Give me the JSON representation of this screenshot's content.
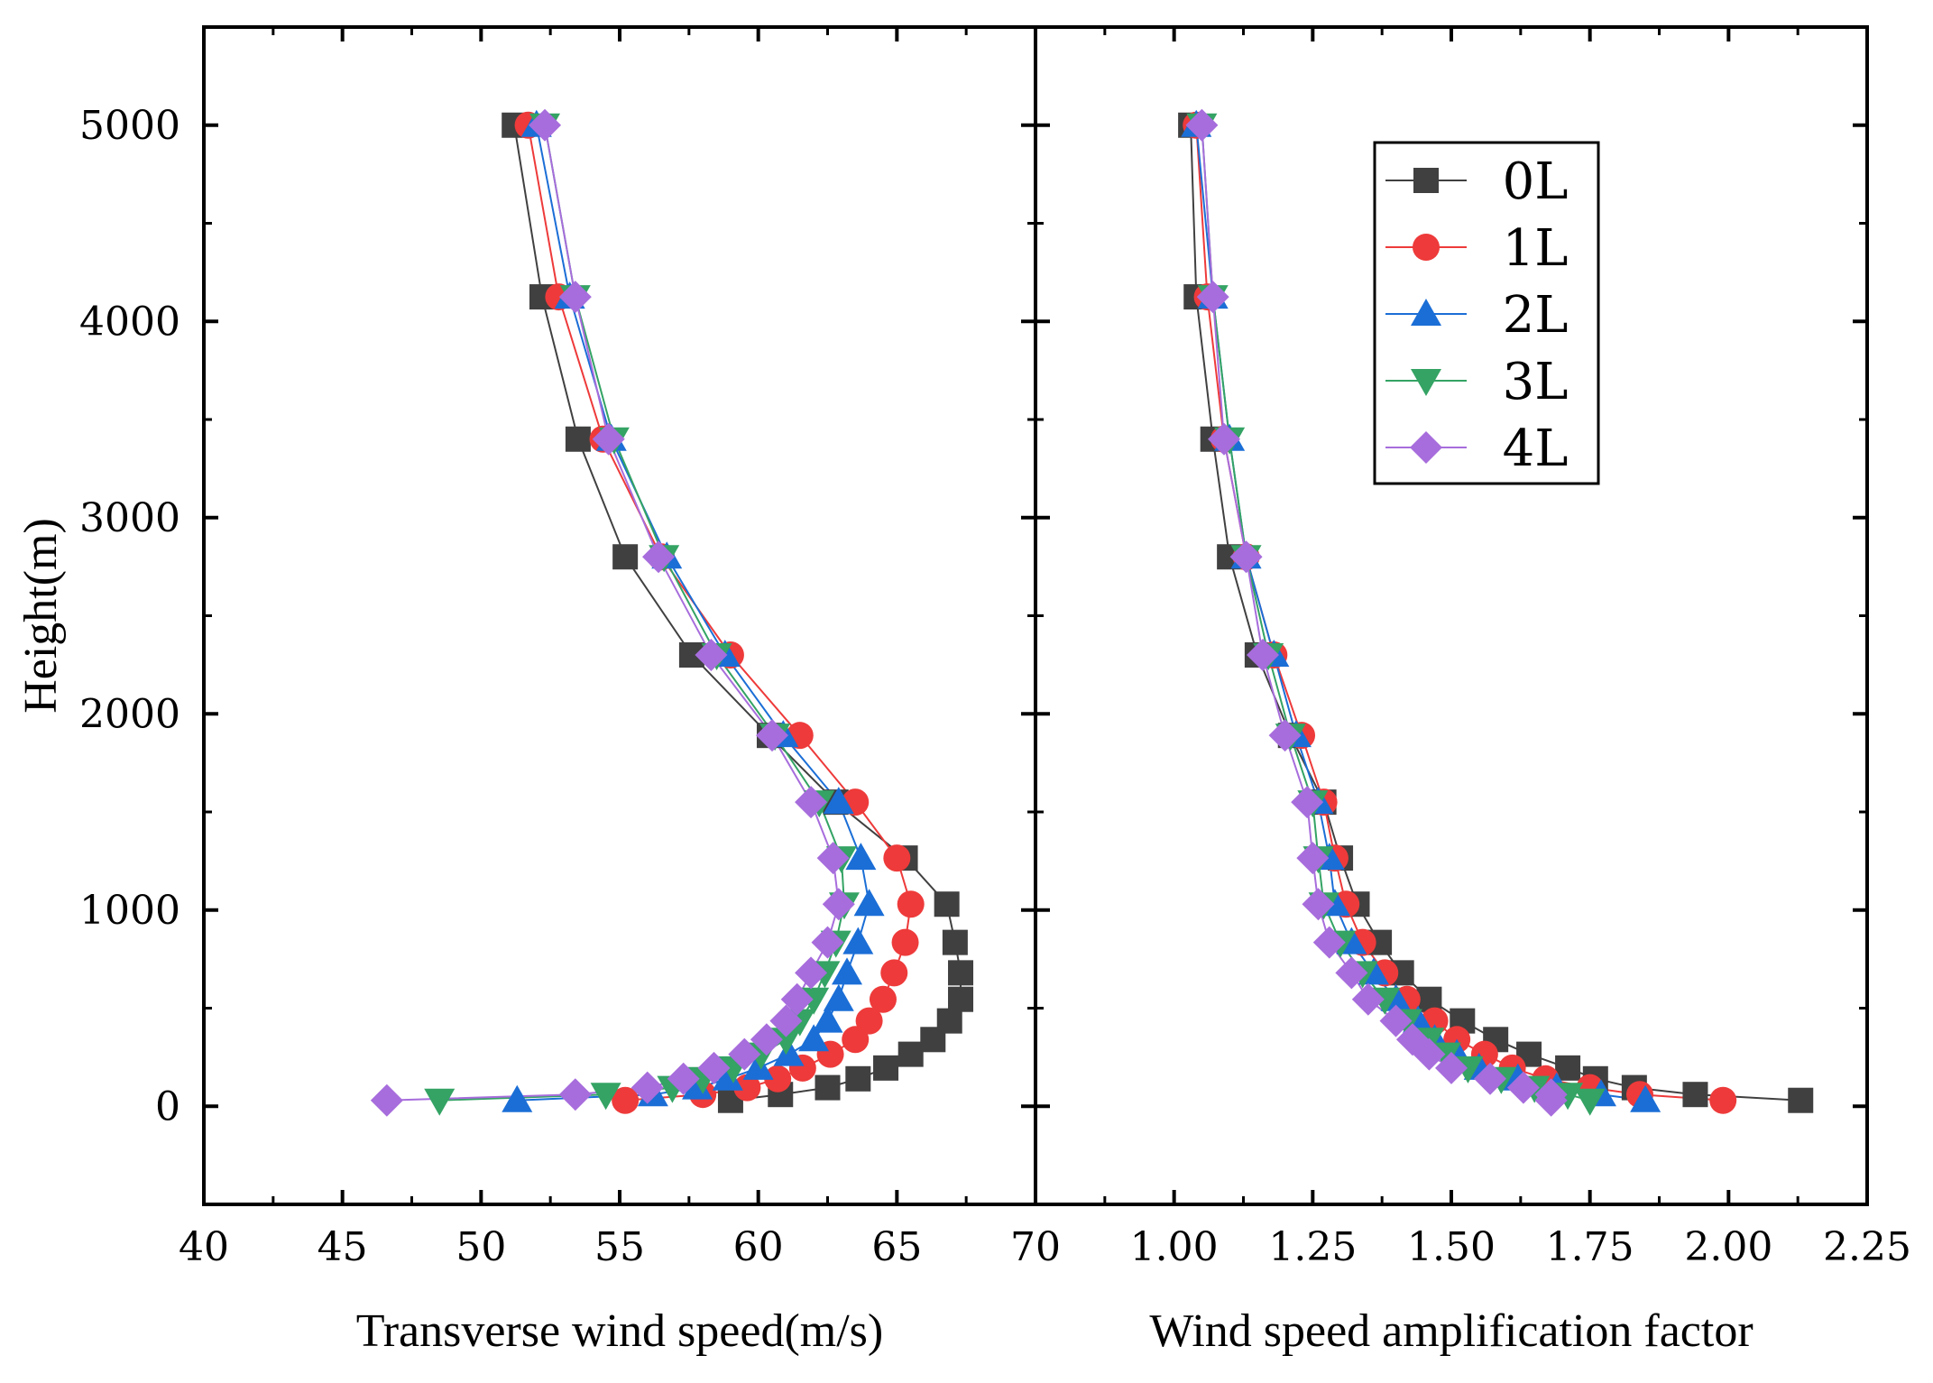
{
  "chart_data": [
    {
      "type": "line",
      "xlabel": "Transverse wind speed(m/s)",
      "ylabel": "Height(m)",
      "xlim": [
        40,
        70
      ],
      "ylim": [
        -500,
        5500
      ],
      "x_ticks": [
        40,
        45,
        50,
        55,
        60,
        65,
        70
      ],
      "x_tick_labels": [
        "40",
        "45",
        "50",
        "55",
        "60",
        "65",
        "70"
      ],
      "y_ticks": [
        0,
        1000,
        2000,
        3000,
        4000,
        5000
      ],
      "y_tick_labels": [
        "0",
        "1000",
        "2000",
        "3000",
        "4000",
        "5000"
      ],
      "y": [
        5000,
        4125,
        3400,
        2800,
        2300,
        1890,
        1550,
        1265,
        1030,
        835,
        680,
        545,
        435,
        340,
        265,
        195,
        140,
        95,
        60,
        30
      ],
      "series": [
        {
          "name": "0L",
          "values": [
            51.2,
            52.2,
            53.5,
            55.2,
            57.6,
            60.4,
            62.8,
            65.3,
            66.8,
            67.1,
            67.3,
            67.3,
            66.9,
            66.3,
            65.5,
            64.6,
            63.6,
            62.5,
            60.8,
            59.0
          ]
        },
        {
          "name": "1L",
          "values": [
            51.7,
            52.8,
            54.4,
            56.5,
            59.0,
            61.5,
            63.5,
            65.0,
            65.5,
            65.3,
            64.9,
            64.5,
            64.0,
            63.5,
            62.6,
            61.6,
            60.7,
            59.6,
            58.0,
            55.2
          ]
        },
        {
          "name": "2L",
          "values": [
            52.0,
            53.2,
            54.7,
            56.7,
            58.8,
            60.9,
            62.9,
            63.7,
            64.0,
            63.6,
            63.2,
            62.9,
            62.5,
            62.0,
            61.1,
            60.0,
            58.9,
            57.8,
            56.2,
            51.3
          ]
        },
        {
          "name": "3L",
          "values": [
            52.3,
            53.4,
            54.8,
            56.6,
            58.5,
            60.6,
            62.2,
            63.0,
            63.1,
            62.8,
            62.4,
            62.0,
            61.5,
            61.0,
            60.1,
            59.1,
            58.0,
            56.9,
            54.5,
            48.5
          ]
        },
        {
          "name": "4L",
          "values": [
            52.3,
            53.4,
            54.6,
            56.4,
            58.3,
            60.5,
            61.9,
            62.7,
            62.9,
            62.5,
            61.9,
            61.4,
            61.0,
            60.3,
            59.5,
            58.4,
            57.3,
            56.0,
            53.4,
            46.6
          ]
        }
      ]
    },
    {
      "type": "line",
      "xlabel": "Wind speed amplification factor",
      "ylabel": "",
      "xlim": [
        0.75,
        2.25
      ],
      "ylim": [
        -500,
        5500
      ],
      "x_ticks": [
        1.0,
        1.25,
        1.5,
        1.75,
        2.0,
        2.25
      ],
      "x_tick_labels": [
        "1.00",
        "1.25",
        "1.50",
        "1.75",
        "2.00",
        "2.25"
      ],
      "y": [
        5000,
        4125,
        3400,
        2800,
        2300,
        1890,
        1550,
        1265,
        1030,
        835,
        680,
        545,
        435,
        340,
        265,
        195,
        140,
        95,
        60,
        30
      ],
      "series": [
        {
          "name": "0L",
          "values": [
            1.03,
            1.04,
            1.07,
            1.1,
            1.15,
            1.21,
            1.27,
            1.3,
            1.33,
            1.37,
            1.41,
            1.46,
            1.52,
            1.58,
            1.64,
            1.71,
            1.76,
            1.83,
            1.94,
            2.13
          ]
        },
        {
          "name": "1L",
          "values": [
            1.04,
            1.06,
            1.09,
            1.13,
            1.18,
            1.23,
            1.27,
            1.29,
            1.31,
            1.34,
            1.38,
            1.42,
            1.47,
            1.51,
            1.56,
            1.61,
            1.67,
            1.75,
            1.84,
            1.99
          ]
        },
        {
          "name": "2L",
          "values": [
            1.04,
            1.07,
            1.1,
            1.13,
            1.18,
            1.22,
            1.26,
            1.28,
            1.29,
            1.32,
            1.36,
            1.4,
            1.44,
            1.47,
            1.51,
            1.55,
            1.62,
            1.69,
            1.77,
            1.85
          ]
        },
        {
          "name": "3L",
          "values": [
            1.05,
            1.07,
            1.1,
            1.13,
            1.17,
            1.21,
            1.25,
            1.26,
            1.27,
            1.3,
            1.34,
            1.38,
            1.42,
            1.46,
            1.49,
            1.53,
            1.59,
            1.65,
            1.71,
            1.75
          ]
        },
        {
          "name": "4L",
          "values": [
            1.05,
            1.07,
            1.09,
            1.13,
            1.16,
            1.2,
            1.24,
            1.25,
            1.26,
            1.28,
            1.32,
            1.35,
            1.4,
            1.43,
            1.46,
            1.5,
            1.57,
            1.63,
            1.68,
            1.68
          ]
        }
      ]
    }
  ],
  "series_styles": [
    {
      "name": "0L",
      "color": "#404040",
      "marker": "square"
    },
    {
      "name": "1L",
      "color": "#ee3a3a",
      "marker": "circle"
    },
    {
      "name": "2L",
      "color": "#1b6ed6",
      "marker": "triangle-up"
    },
    {
      "name": "3L",
      "color": "#34a364",
      "marker": "triangle-down"
    },
    {
      "name": "4L",
      "color": "#a76ddc",
      "marker": "diamond"
    }
  ],
  "legend": {
    "position": "top-right",
    "panel": 2,
    "entries": [
      "0L",
      "1L",
      "2L",
      "3L",
      "4L"
    ]
  }
}
